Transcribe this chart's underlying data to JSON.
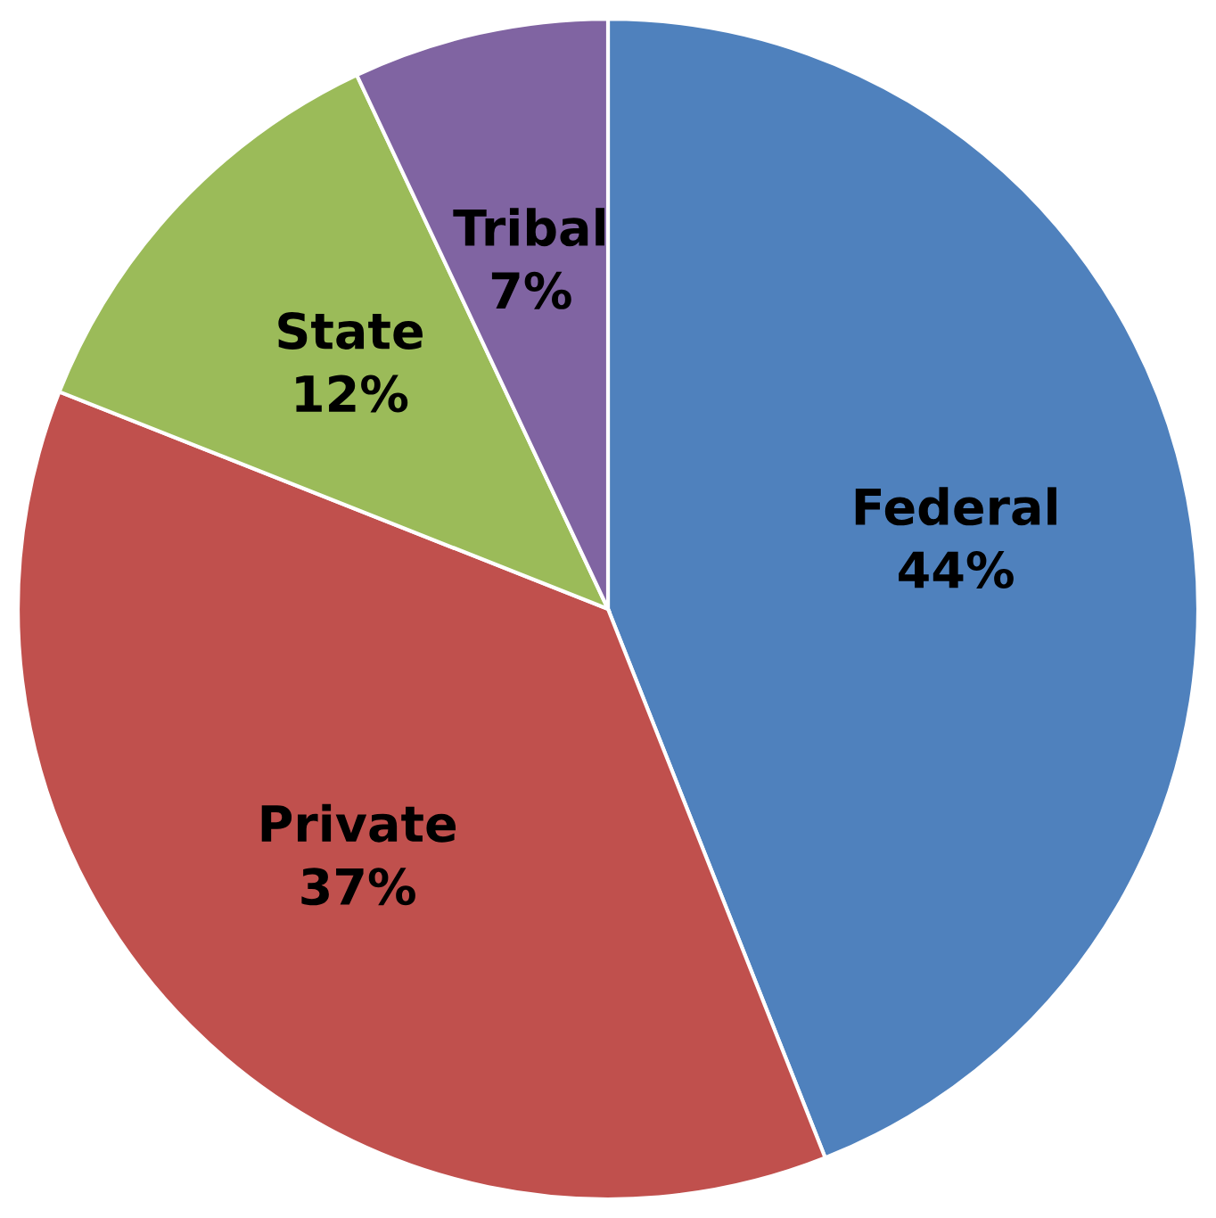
{
  "chart_data": {
    "type": "pie",
    "categories": [
      "Federal",
      "Private",
      "State",
      "Tribal"
    ],
    "values": [
      44,
      37,
      12,
      7
    ],
    "value_labels": [
      "44%",
      "37%",
      "12%",
      "7%"
    ],
    "colors": [
      "#4f81bd",
      "#c0504d",
      "#9bbb59",
      "#8064a2"
    ]
  }
}
